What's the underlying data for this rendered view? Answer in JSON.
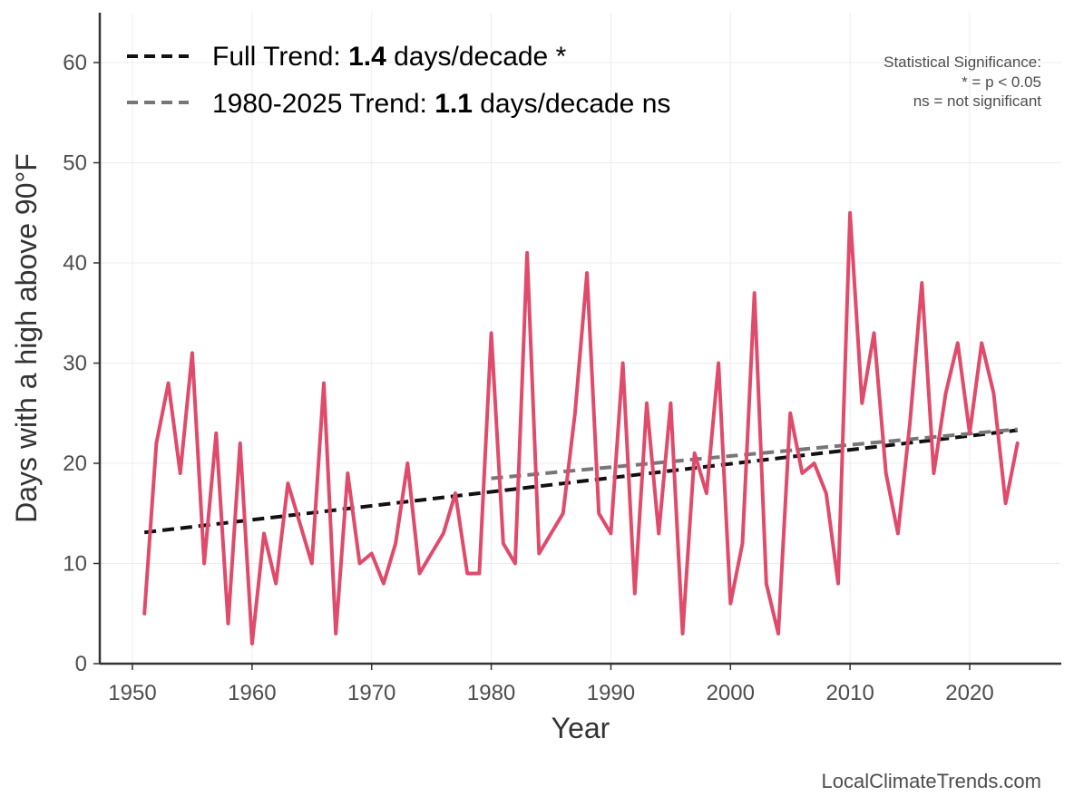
{
  "chart_data": {
    "type": "line",
    "title": "",
    "xlabel": "Year",
    "ylabel": "Days with a high above 90°F",
    "xlim": [
      1947.5,
      2028
    ],
    "ylim": [
      0,
      65
    ],
    "xticks": [
      1950,
      1960,
      1970,
      1980,
      1990,
      2000,
      2010,
      2020
    ],
    "yticks": [
      0,
      10,
      20,
      30,
      40,
      50,
      60
    ],
    "grid": true,
    "legend_position": "top-left",
    "series": [
      {
        "name": "",
        "color": "#e04a6b",
        "x": [
          1951,
          1952,
          1953,
          1954,
          1955,
          1956,
          1957,
          1958,
          1959,
          1960,
          1961,
          1962,
          1963,
          1964,
          1965,
          1966,
          1967,
          1968,
          1969,
          1970,
          1971,
          1972,
          1973,
          1974,
          1975,
          1976,
          1977,
          1978,
          1979,
          1980,
          1981,
          1982,
          1983,
          1984,
          1985,
          1986,
          1987,
          1988,
          1989,
          1990,
          1991,
          1992,
          1993,
          1994,
          1995,
          1996,
          1997,
          1998,
          1999,
          2000,
          2001,
          2002,
          2003,
          2004,
          2005,
          2006,
          2007,
          2008,
          2009,
          2010,
          2011,
          2012,
          2013,
          2014,
          2015,
          2016,
          2017,
          2018,
          2019,
          2020,
          2021,
          2022,
          2023,
          2024
        ],
        "values": [
          5,
          22,
          28,
          19,
          31,
          10,
          23,
          4,
          22,
          2,
          13,
          8,
          18,
          14,
          10,
          28,
          3,
          19,
          10,
          11,
          8,
          12,
          20,
          9,
          11,
          13,
          17,
          9,
          9,
          33,
          12,
          10,
          41,
          11,
          13,
          15,
          25,
          39,
          15,
          13,
          30,
          7,
          26,
          13,
          26,
          3,
          21,
          17,
          30,
          6,
          12,
          37,
          8,
          3,
          25,
          19,
          20,
          17,
          8,
          45,
          26,
          33,
          19,
          13,
          24,
          38,
          19,
          27,
          32,
          23,
          32,
          27,
          16,
          22
        ]
      }
    ],
    "trends": [
      {
        "label": "Full Trend: ",
        "value_text": "1.4",
        "suffix": " days/decade *",
        "color": "#111111",
        "x": [
          1951,
          2024
        ],
        "y": [
          13.1,
          23.3
        ]
      },
      {
        "label": "1980-2025 Trend: ",
        "value_text": "1.1",
        "suffix": " days/decade ns",
        "color": "#777777",
        "x": [
          1980,
          2024
        ],
        "y": [
          18.5,
          23.4
        ]
      }
    ],
    "annotations": {
      "significance_lines": [
        "Statistical Significance:",
        "* = p < 0.05",
        "ns = not significant"
      ],
      "credit": "LocalClimateTrends.com"
    }
  }
}
